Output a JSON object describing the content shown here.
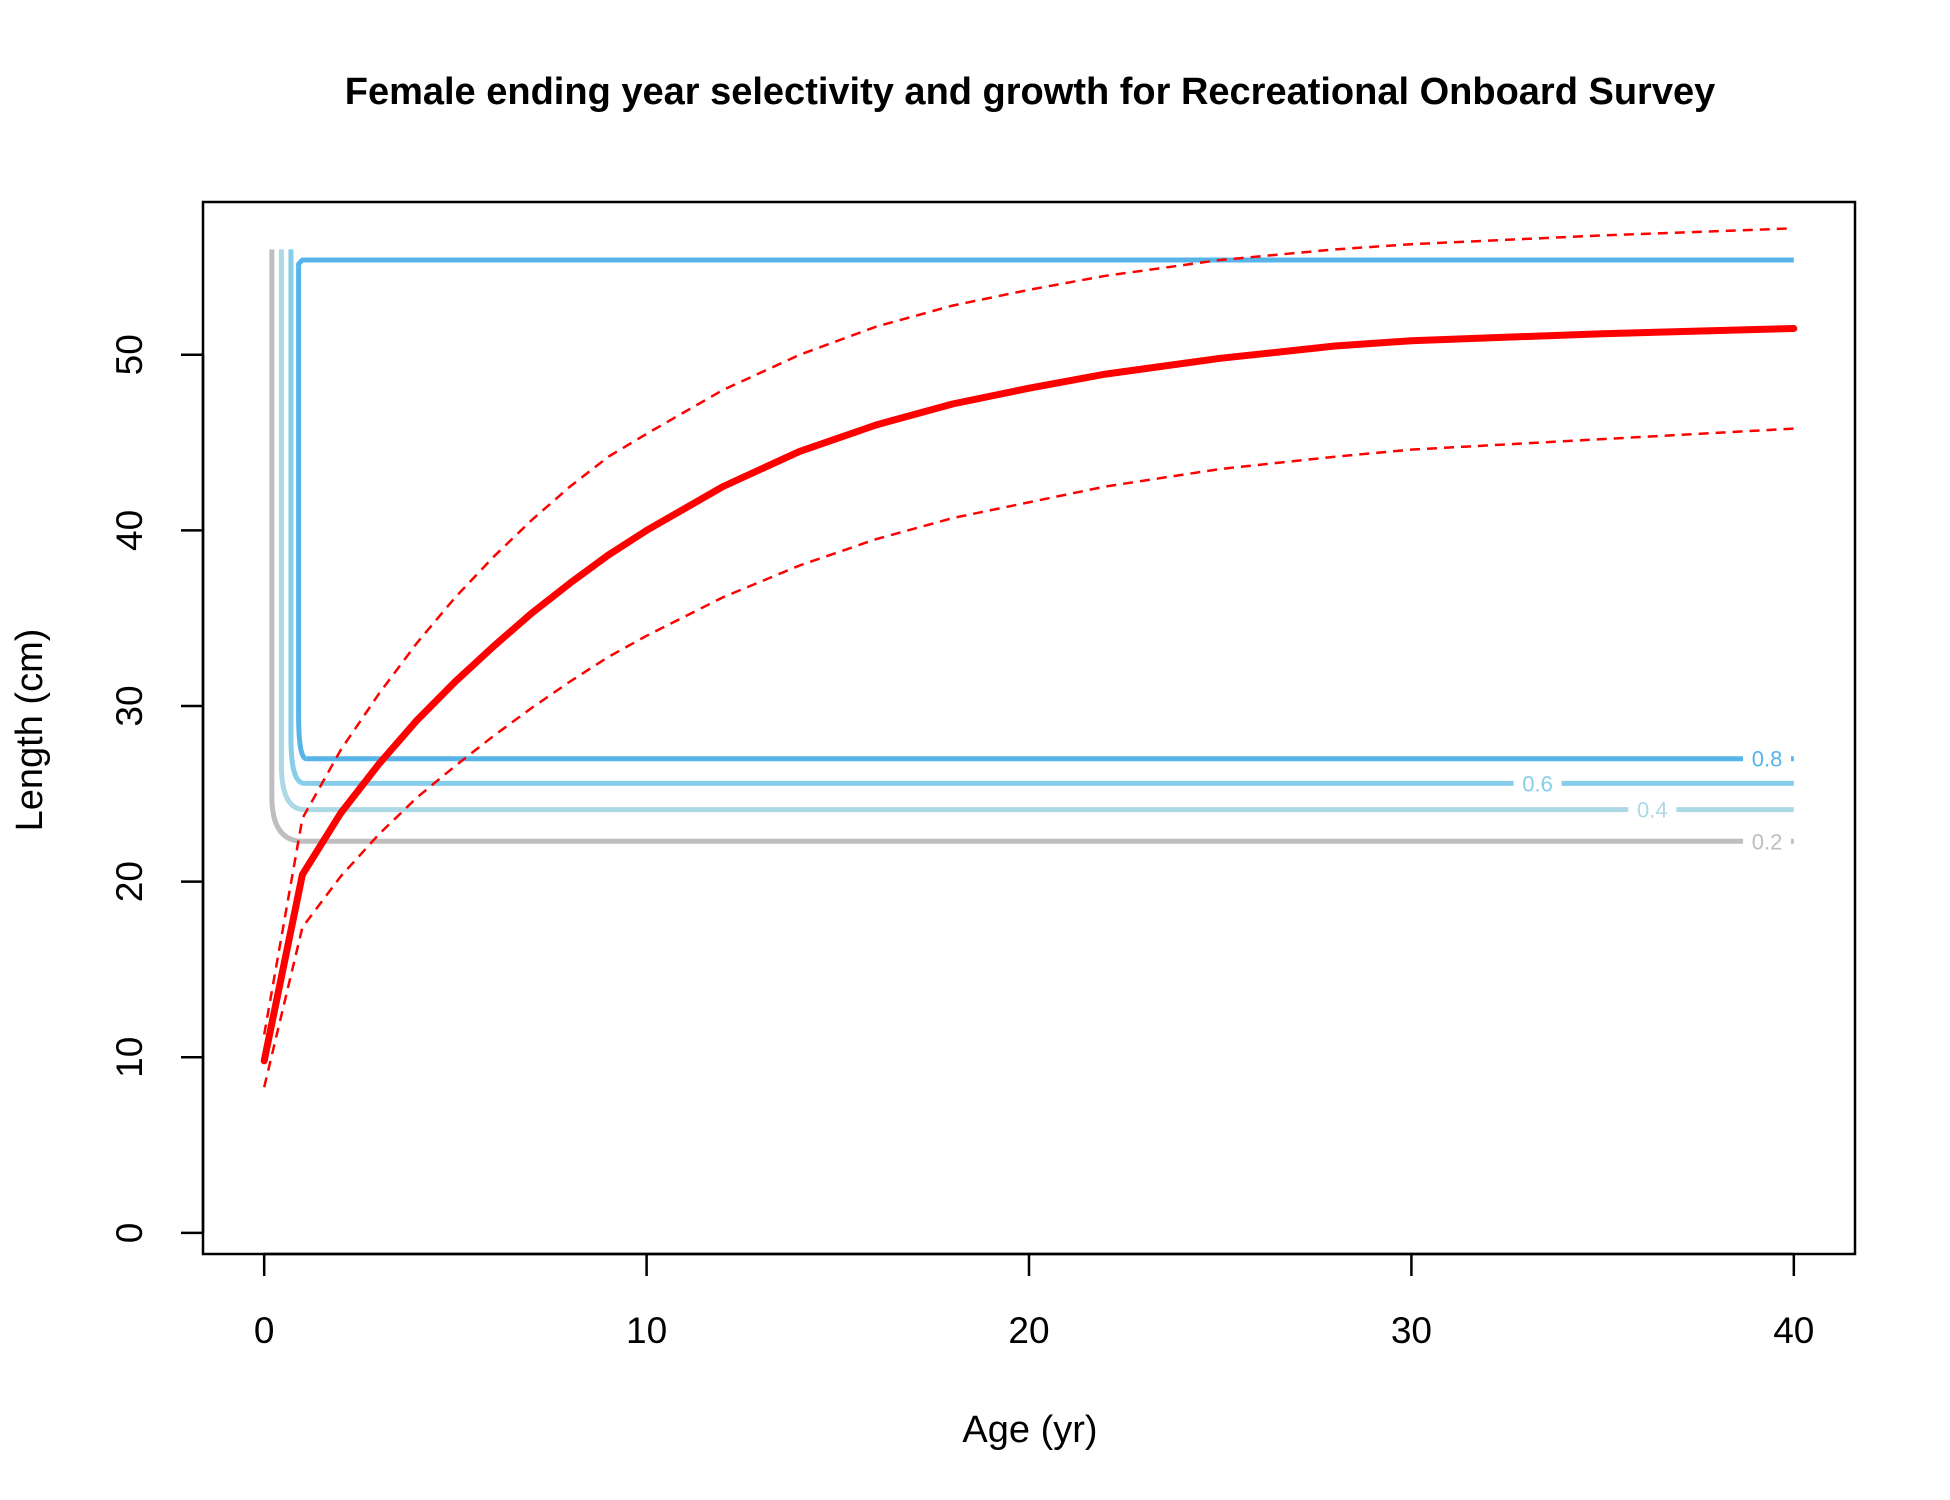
{
  "chart_data": {
    "type": "line",
    "title": "Female ending year selectivity and growth for Recreational Onboard Survey",
    "xlabel": "Age (yr)",
    "ylabel": "Length (cm)",
    "xlim": [
      -1.6,
      41.6
    ],
    "ylim": [
      -1.2,
      58.7
    ],
    "x_ticks": [
      "0",
      "10",
      "20",
      "30",
      "40"
    ],
    "y_ticks": [
      "0",
      "10",
      "20",
      "30",
      "40",
      "50"
    ],
    "grid": false,
    "legend": "none",
    "growth": {
      "color": "#ff0000",
      "mean": [
        [
          0,
          9.8
        ],
        [
          1,
          20.4
        ],
        [
          2,
          23.9
        ],
        [
          3,
          26.7
        ],
        [
          4,
          29.2
        ],
        [
          5,
          31.4
        ],
        [
          6,
          33.4
        ],
        [
          7,
          35.3
        ],
        [
          8,
          37.0
        ],
        [
          9,
          38.6
        ],
        [
          10,
          40.0
        ],
        [
          12,
          42.5
        ],
        [
          14,
          44.5
        ],
        [
          16,
          46.0
        ],
        [
          18,
          47.2
        ],
        [
          20,
          48.1
        ],
        [
          22,
          48.9
        ],
        [
          25,
          49.8
        ],
        [
          28,
          50.5
        ],
        [
          30,
          50.8
        ],
        [
          35,
          51.2
        ],
        [
          40,
          51.5
        ]
      ],
      "upper": [
        [
          0,
          11.3
        ],
        [
          1,
          23.6
        ],
        [
          2,
          27.5
        ],
        [
          3,
          30.7
        ],
        [
          4,
          33.6
        ],
        [
          5,
          36.2
        ],
        [
          6,
          38.5
        ],
        [
          7,
          40.6
        ],
        [
          8,
          42.5
        ],
        [
          9,
          44.2
        ],
        [
          10,
          45.5
        ],
        [
          12,
          48.0
        ],
        [
          14,
          50.0
        ],
        [
          16,
          51.6
        ],
        [
          18,
          52.8
        ],
        [
          20,
          53.7
        ],
        [
          22,
          54.5
        ],
        [
          25,
          55.4
        ],
        [
          28,
          56.0
        ],
        [
          30,
          56.3
        ],
        [
          35,
          56.8
        ],
        [
          40,
          57.2
        ]
      ],
      "lower": [
        [
          0,
          8.3
        ],
        [
          1,
          17.4
        ],
        [
          2,
          20.3
        ],
        [
          3,
          22.7
        ],
        [
          4,
          24.8
        ],
        [
          5,
          26.6
        ],
        [
          6,
          28.3
        ],
        [
          7,
          29.9
        ],
        [
          8,
          31.4
        ],
        [
          9,
          32.8
        ],
        [
          10,
          34.0
        ],
        [
          12,
          36.2
        ],
        [
          14,
          38.0
        ],
        [
          16,
          39.5
        ],
        [
          18,
          40.7
        ],
        [
          20,
          41.6
        ],
        [
          22,
          42.5
        ],
        [
          25,
          43.5
        ],
        [
          28,
          44.2
        ],
        [
          30,
          44.6
        ],
        [
          35,
          45.2
        ],
        [
          40,
          45.8
        ]
      ]
    },
    "selectivity_contours": [
      {
        "level": "0.2",
        "color": "#bebebe",
        "label_age": 39.3,
        "left_age": 0.2,
        "corner_age": 1.0,
        "bottom_length": 22.3,
        "top_length": 56.0
      },
      {
        "level": "0.4",
        "color": "#add8e6",
        "label_age": 36.3,
        "left_age": 0.45,
        "corner_age": 1.05,
        "bottom_length": 24.1,
        "top_length": 56.0
      },
      {
        "level": "0.6",
        "color": "#87ceeb",
        "label_age": 33.3,
        "left_age": 0.7,
        "corner_age": 1.05,
        "bottom_length": 25.6,
        "top_length": 56.0
      },
      {
        "level": "0.8",
        "color": "#56b4e9",
        "label_age": 39.3,
        "left_age": 0.9,
        "corner_age": 1.1,
        "bottom_length": 27.0,
        "top_length": 55.4,
        "top_age_start": 1.0,
        "top_to_edge": true
      }
    ]
  }
}
